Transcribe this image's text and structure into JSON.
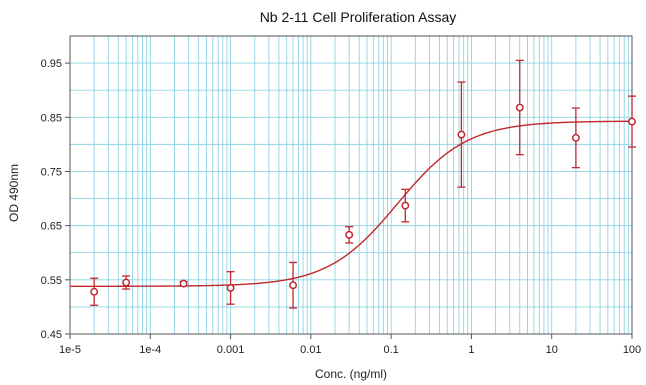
{
  "chart_data": {
    "type": "scatter",
    "title": "Nb 2-11 Cell Proliferation Assay",
    "xlabel": "Conc. (ng/ml)",
    "ylabel": "OD 490nm",
    "x_scale": "log",
    "xlim": [
      1e-05,
      100
    ],
    "ylim": [
      0.45,
      1.0
    ],
    "x_ticks": [
      {
        "value": 1e-05,
        "label": "1e-5"
      },
      {
        "value": 0.0001,
        "label": "1e-4"
      },
      {
        "value": 0.001,
        "label": "0.001"
      },
      {
        "value": 0.01,
        "label": "0.01"
      },
      {
        "value": 0.1,
        "label": "0.1"
      },
      {
        "value": 1,
        "label": "1"
      },
      {
        "value": 10,
        "label": "10"
      },
      {
        "value": 100,
        "label": "100"
      }
    ],
    "y_ticks": [
      {
        "value": 0.45,
        "label": "0.45"
      },
      {
        "value": 0.55,
        "label": "0.55"
      },
      {
        "value": 0.65,
        "label": "0.65"
      },
      {
        "value": 0.75,
        "label": "0.75"
      },
      {
        "value": 0.85,
        "label": "0.85"
      },
      {
        "value": 0.95,
        "label": "0.95"
      }
    ],
    "grid": true,
    "series": [
      {
        "points": [
          {
            "x": 2e-05,
            "y": 0.528,
            "err": 0.025
          },
          {
            "x": 5e-05,
            "y": 0.545,
            "err": 0.012
          },
          {
            "x": 0.00026,
            "y": 0.543,
            "err": 0.004
          },
          {
            "x": 0.001,
            "y": 0.535,
            "err": 0.03
          },
          {
            "x": 0.006,
            "y": 0.54,
            "err": 0.042
          },
          {
            "x": 0.03,
            "y": 0.633,
            "err": 0.015
          },
          {
            "x": 0.15,
            "y": 0.687,
            "err": 0.03
          },
          {
            "x": 0.75,
            "y": 0.818,
            "err": 0.097
          },
          {
            "x": 4,
            "y": 0.868,
            "err": 0.087
          },
          {
            "x": 20,
            "y": 0.812,
            "err": 0.055
          },
          {
            "x": 100,
            "y": 0.842,
            "err": 0.047
          }
        ],
        "fit": {
          "type": "4PL",
          "bottom": 0.538,
          "top": 0.843,
          "ec50": 0.12,
          "hill": 1.0
        }
      }
    ],
    "colors": {
      "grid": "#8fd3e3",
      "axes": "#555555",
      "data": "#c0282d"
    }
  }
}
